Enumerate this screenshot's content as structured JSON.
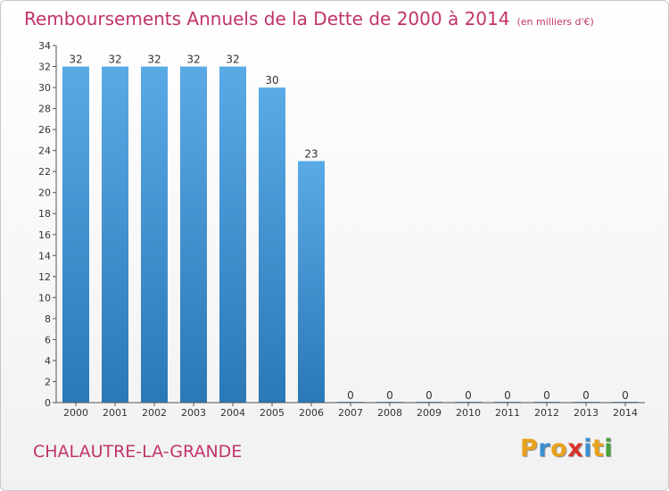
{
  "chart_data": {
    "type": "bar",
    "title": "Remboursements Annuels de la Dette de 2000 à 2014",
    "unit": "(en milliers d'€)",
    "categories": [
      "2000",
      "2001",
      "2002",
      "2003",
      "2004",
      "2005",
      "2006",
      "2007",
      "2008",
      "2009",
      "2010",
      "2011",
      "2012",
      "2013",
      "2014"
    ],
    "values": [
      32,
      32,
      32,
      32,
      32,
      30,
      23,
      0,
      0,
      0,
      0,
      0,
      0,
      0,
      0
    ],
    "ylim": [
      0,
      34
    ],
    "yticks": [
      0,
      2,
      4,
      6,
      8,
      10,
      12,
      14,
      16,
      18,
      20,
      22,
      24,
      26,
      28,
      30,
      32,
      34
    ],
    "grid": false,
    "bar_color_top": "#5aaae6",
    "bar_color_bottom": "#2a78b6"
  },
  "footer": {
    "commune": "CHALAUTRE-LA-GRANDE",
    "logo": [
      "P",
      "r",
      "o",
      "x",
      "i",
      "t",
      "i"
    ],
    "logo_colors": [
      "#e8a21a",
      "#3b8fd1",
      "#e8a21a",
      "#d8342a",
      "#3b8fd1",
      "#e8a21a",
      "#46a23a"
    ]
  },
  "colors": {
    "title": "#c0346b",
    "axis": "#555555",
    "text": "#333333"
  }
}
